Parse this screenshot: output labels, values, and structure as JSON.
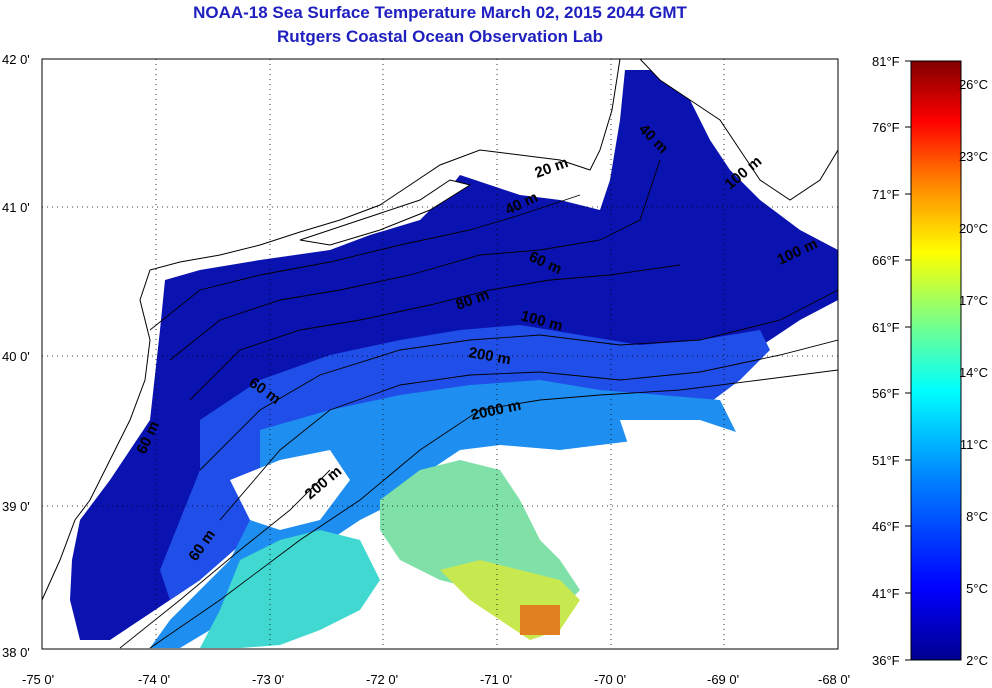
{
  "title": {
    "line1": "NOAA-18 Sea Surface Temperature March 02, 2015 2044 GMT",
    "line2": "Rutgers Coastal Ocean Observation Lab"
  },
  "map": {
    "lon_range": [
      -75,
      -68
    ],
    "lat_range": [
      38,
      42
    ],
    "lon_ticks": [
      "-75 0'",
      "-74 0'",
      "-73 0'",
      "-72 0'",
      "-71 0'",
      "-70 0'",
      "-69 0'",
      "-68 0'"
    ],
    "lat_ticks": [
      "38 0'",
      "39 0'",
      "40 0'",
      "41 0'",
      "42 0'"
    ],
    "gridlines": "dotted",
    "land_color": "#ffffff",
    "cloud_mask_color": "#ffffff"
  },
  "contour_labels": [
    {
      "text": "20 m"
    },
    {
      "text": "40 m"
    },
    {
      "text": "40 m"
    },
    {
      "text": "100 m"
    },
    {
      "text": "60 m"
    },
    {
      "text": "80 m"
    },
    {
      "text": "100 m"
    },
    {
      "text": "100 m"
    },
    {
      "text": "200 m"
    },
    {
      "text": "2000 m"
    },
    {
      "text": "60 m"
    },
    {
      "text": "200 m"
    },
    {
      "text": "60 m"
    },
    {
      "text": "60 m"
    }
  ],
  "colorbar": {
    "fahrenheit_labels": [
      "81°F",
      "76°F",
      "71°F",
      "66°F",
      "61°F",
      "56°F",
      "51°F",
      "46°F",
      "41°F",
      "36°F"
    ],
    "celsius_labels": [
      "26°C",
      "23°C",
      "20°C",
      "17°C",
      "14°C",
      "11°C",
      "8°C",
      "5°C",
      "2°C"
    ],
    "colors": [
      "#00008f",
      "#0000ff",
      "#0080ff",
      "#00ffff",
      "#80ff80",
      "#ffff00",
      "#ff8000",
      "#ff0000",
      "#800000"
    ]
  }
}
